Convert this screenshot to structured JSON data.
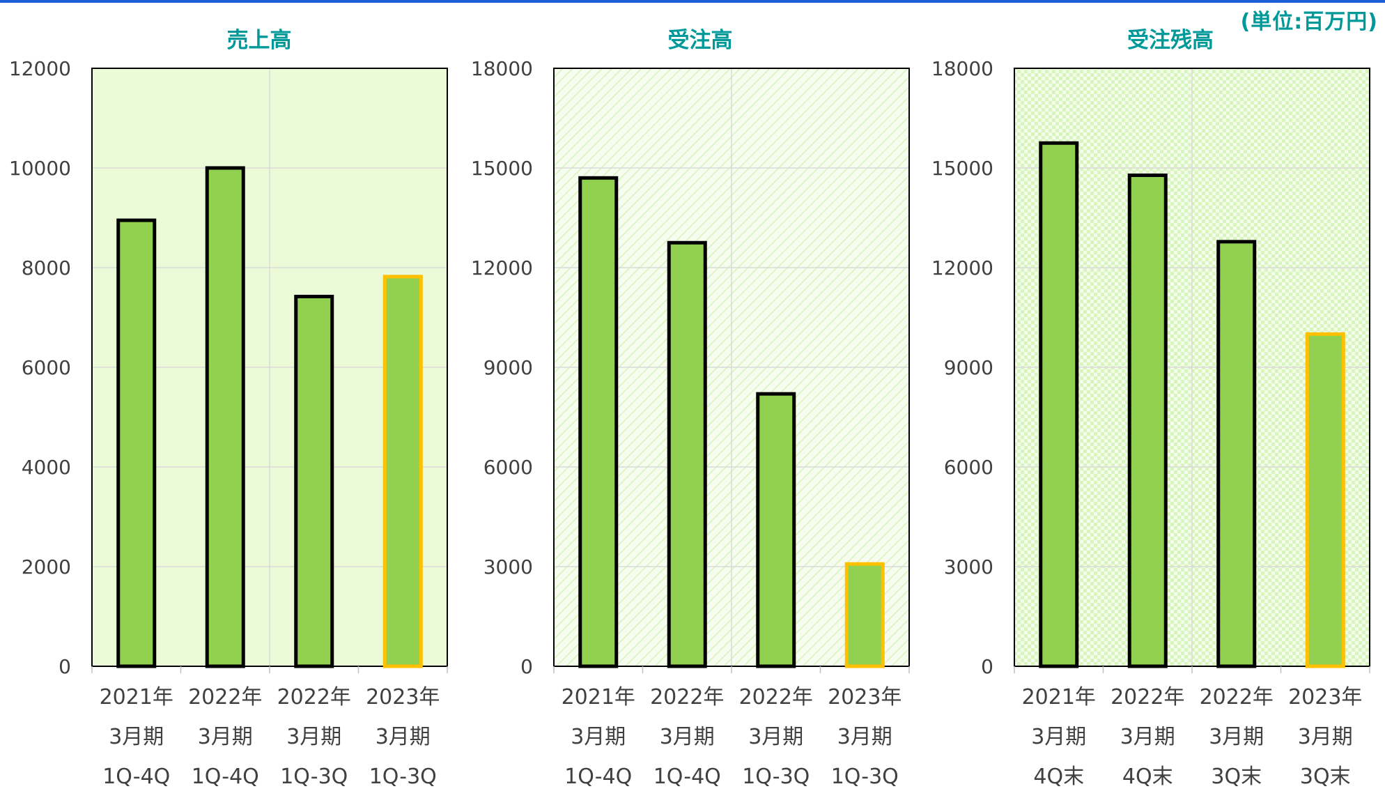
{
  "unit_label": "(単位:百万円)",
  "colors": {
    "bar_fill": "#92d050",
    "bar_stroke_actual": "#000000",
    "bar_stroke_current": "#ffc000",
    "title": "#009999",
    "plot_bg": "#ebfbd8",
    "grid": "#d9d9d9",
    "axis_text": "#404040",
    "top_rule": "#1f5fd6"
  },
  "chart_data": [
    {
      "type": "bar",
      "title": "売上高",
      "categories": [
        [
          "2021年",
          "3月期",
          "1Q-4Q"
        ],
        [
          "2022年",
          "3月期",
          "1Q-4Q"
        ],
        [
          "2022年",
          "3月期",
          "1Q-3Q"
        ],
        [
          "2023年",
          "3月期",
          "1Q-3Q"
        ]
      ],
      "values": [
        8950,
        10000,
        7420,
        7820
      ],
      "highlight": [
        false,
        false,
        false,
        true
      ],
      "ylim": [
        0,
        12000
      ],
      "yticks": [
        0,
        2000,
        4000,
        6000,
        8000,
        10000,
        12000
      ],
      "grid": true,
      "background": "solid"
    },
    {
      "type": "bar",
      "title": "受注高",
      "categories": [
        [
          "2021年",
          "3月期",
          "1Q-4Q"
        ],
        [
          "2022年",
          "3月期",
          "1Q-4Q"
        ],
        [
          "2022年",
          "3月期",
          "1Q-3Q"
        ],
        [
          "2023年",
          "3月期",
          "1Q-3Q"
        ]
      ],
      "values": [
        14700,
        12750,
        8200,
        3080
      ],
      "highlight": [
        false,
        false,
        false,
        true
      ],
      "ylim": [
        0,
        18000
      ],
      "yticks": [
        0,
        3000,
        6000,
        9000,
        12000,
        15000,
        18000
      ],
      "grid": true,
      "background": "diagonal"
    },
    {
      "type": "bar",
      "title": "受注残高",
      "categories": [
        [
          "2021年",
          "3月期",
          "4Q末"
        ],
        [
          "2022年",
          "3月期",
          "4Q末"
        ],
        [
          "2022年",
          "3月期",
          "3Q末"
        ],
        [
          "2023年",
          "3月期",
          "3Q末"
        ]
      ],
      "values": [
        15750,
        14780,
        12780,
        10000
      ],
      "highlight": [
        false,
        false,
        false,
        true
      ],
      "ylim": [
        0,
        18000
      ],
      "yticks": [
        0,
        3000,
        6000,
        9000,
        12000,
        15000,
        18000
      ],
      "grid": true,
      "background": "dots"
    }
  ]
}
